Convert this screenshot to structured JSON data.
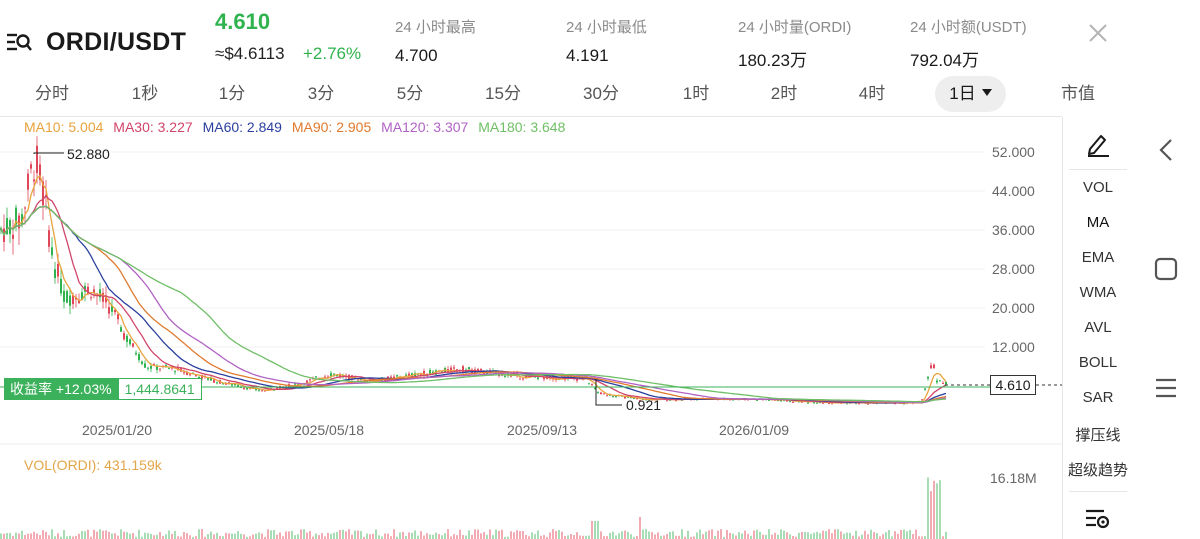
{
  "header": {
    "pair": "ORDI/USDT",
    "last_price": "4.610",
    "usd_price": "≈$4.6113",
    "change_pct": "+2.76%",
    "stats": [
      {
        "label": "24 小时最高",
        "value": "4.700"
      },
      {
        "label": "24 小时最低",
        "value": "4.191"
      },
      {
        "label": "24 小时量(ORDI)",
        "value": "180.23万"
      },
      {
        "label": "24 小时额(USDT)",
        "value": "792.04万"
      }
    ]
  },
  "tabs": [
    "分时",
    "1秒",
    "1分",
    "3分",
    "5分",
    "15分",
    "30分",
    "1时",
    "2时",
    "4时",
    "1日",
    "市值"
  ],
  "active_tab": "1日",
  "ma_legend": [
    {
      "label": "MA10: 5.004",
      "color": "#e8a33c"
    },
    {
      "label": "MA30: 3.227",
      "color": "#d1456b"
    },
    {
      "label": "MA60: 2.849",
      "color": "#2a3f9e"
    },
    {
      "label": "MA90: 2.905",
      "color": "#e07a2e"
    },
    {
      "label": "MA120: 3.307",
      "color": "#b063c4"
    },
    {
      "label": "MA180: 3.648",
      "color": "#6fbf66"
    }
  ],
  "price_axis": [
    "52.000",
    "44.000",
    "36.000",
    "28.000",
    "20.000",
    "12.000"
  ],
  "date_axis": [
    "2025/01/20",
    "2025/05/18",
    "2025/09/13",
    "2026/01/09"
  ],
  "high_marker": "52.880",
  "low_marker": "0.921",
  "last_price_tag": "4.610",
  "profit": {
    "label": "收益率 +12.03%",
    "value": "1,444.8641"
  },
  "volume": {
    "label": "VOL(ORDI): 431.159k",
    "max": "16.18M"
  },
  "indicators": [
    "VOL",
    "MA",
    "EMA",
    "WMA",
    "AVL",
    "BOLL",
    "SAR",
    "撑压线",
    "超级趋势"
  ],
  "colors": {
    "up": "#2fb34f",
    "down": "#e0475b",
    "accent": "#3cb15b"
  },
  "icons": {
    "menu": "menu-search-icon",
    "close": "close-icon",
    "draw": "pen-draw-icon",
    "settings": "indicator-settings-icon"
  }
}
